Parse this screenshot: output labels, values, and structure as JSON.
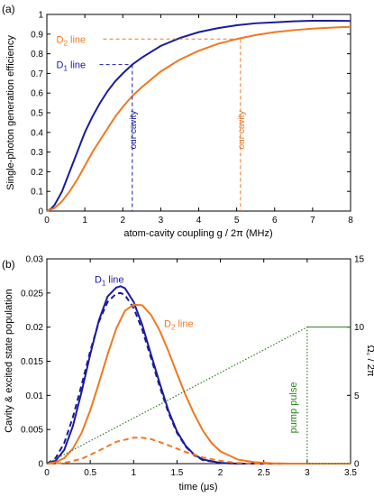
{
  "chart_data": [
    {
      "type": "line",
      "panel_label": "(a)",
      "xlabel": "atom-cavity coupling  g / 2π  (MHz)",
      "ylabel": "Single-photon generation efficiency",
      "xlim": [
        0,
        8
      ],
      "ylim": [
        0,
        1
      ],
      "x_ticks": [
        0,
        1,
        2,
        3,
        4,
        5,
        6,
        7,
        8
      ],
      "y_ticks": [
        0,
        0.1,
        0.2,
        0.3,
        0.4,
        0.5,
        0.6,
        0.7,
        0.8,
        0.9,
        1
      ],
      "y_tick_labels": [
        "0",
        "0.1",
        "0.2",
        "0.3",
        "0.4",
        "0.5",
        "0.6",
        "0.7",
        "0.8",
        "0.9",
        "1"
      ],
      "series": [
        {
          "name": "D1 line",
          "label_main": "D",
          "label_sub": "1",
          "label_rest": " line",
          "color": "#1a1a9e",
          "x": [
            0,
            0.1,
            0.2,
            0.4,
            0.6,
            0.8,
            1.0,
            1.2,
            1.4,
            1.6,
            1.8,
            2.0,
            2.25,
            2.5,
            3.0,
            3.5,
            4.0,
            4.5,
            5.0,
            5.5,
            6.0,
            6.5,
            7.0,
            7.5,
            8.0
          ],
          "y": [
            0,
            0.01,
            0.03,
            0.1,
            0.2,
            0.3,
            0.4,
            0.48,
            0.55,
            0.61,
            0.66,
            0.7,
            0.745,
            0.78,
            0.84,
            0.88,
            0.91,
            0.93,
            0.945,
            0.955,
            0.96,
            0.965,
            0.968,
            0.968,
            0.967
          ]
        },
        {
          "name": "D2 line",
          "label_main": "D",
          "label_sub": "2",
          "label_rest": " line",
          "color": "#f07820",
          "x": [
            0,
            0.2,
            0.4,
            0.6,
            0.8,
            1.0,
            1.2,
            1.4,
            1.6,
            1.8,
            2.0,
            2.25,
            2.5,
            3.0,
            3.5,
            4.0,
            4.5,
            5.0,
            5.5,
            6.0,
            6.5,
            7.0,
            7.5,
            8.0
          ],
          "y": [
            0,
            0.015,
            0.05,
            0.1,
            0.16,
            0.23,
            0.3,
            0.36,
            0.42,
            0.48,
            0.53,
            0.585,
            0.63,
            0.71,
            0.77,
            0.815,
            0.85,
            0.875,
            0.895,
            0.91,
            0.92,
            0.928,
            0.933,
            0.937
          ]
        }
      ],
      "markers": [
        {
          "series": 0,
          "x": 2.25,
          "y": 0.745,
          "annotation": "our cavity",
          "label_x0": 0.25
        },
        {
          "series": 1,
          "x": 5.1,
          "y": 0.875,
          "annotation": "our cavity",
          "label_x0": 0.25
        }
      ]
    },
    {
      "type": "line",
      "panel_label": "(b)",
      "xlabel": "time (μs)",
      "ylabel": "Cavity & excited state population",
      "y2label": "Ω꜀ / 2π",
      "xlim": [
        0,
        3.5
      ],
      "ylim": [
        0,
        0.03
      ],
      "y2lim": [
        0,
        15
      ],
      "x_ticks": [
        0,
        0.5,
        1,
        1.5,
        2,
        2.5,
        3,
        3.5
      ],
      "x_tick_labels": [
        "0",
        "0.5",
        "1",
        "1.5",
        "2",
        "2.5",
        "3",
        "3.5"
      ],
      "y_ticks": [
        0,
        0.005,
        0.01,
        0.015,
        0.02,
        0.025,
        0.03
      ],
      "y_tick_labels": [
        "0",
        "0.005",
        "0.01",
        "0.015",
        "0.02",
        "0.025",
        "0.03"
      ],
      "y2_ticks": [
        0,
        5,
        10,
        15
      ],
      "y2_tick_labels": [
        "0",
        "5",
        "10",
        "15"
      ],
      "annotations": [
        {
          "text_main": "D",
          "text_sub": "1",
          "text_rest": " line",
          "color": "#1a1a9e",
          "x": 0.55,
          "y": 0.0265
        },
        {
          "text_main": "D",
          "text_sub": "2",
          "text_rest": " line",
          "color": "#f07820",
          "x": 1.35,
          "y": 0.02
        },
        {
          "text": "pump pulse",
          "color": "#2e7d1e",
          "x": 2.9,
          "y": 0.0082
        }
      ],
      "series": [
        {
          "name": "D1 cavity",
          "color": "#1a1a9e",
          "style": "solid",
          "axis": "left",
          "x": [
            0,
            0.1,
            0.2,
            0.3,
            0.4,
            0.5,
            0.6,
            0.7,
            0.8,
            0.85,
            0.9,
            1.0,
            1.1,
            1.2,
            1.3,
            1.4,
            1.5,
            1.6,
            1.7,
            1.8,
            2.0,
            2.2,
            2.5,
            3.0,
            3.5
          ],
          "y": [
            0,
            0.0004,
            0.002,
            0.0055,
            0.0105,
            0.016,
            0.021,
            0.0245,
            0.0258,
            0.026,
            0.0257,
            0.0237,
            0.0203,
            0.016,
            0.0118,
            0.0078,
            0.0047,
            0.0026,
            0.0013,
            0.0006,
            0.0001,
            0,
            0,
            0,
            0
          ]
        },
        {
          "name": "D1 excited",
          "color": "#1a1a9e",
          "style": "dashed",
          "axis": "left",
          "x": [
            0,
            0.1,
            0.2,
            0.3,
            0.4,
            0.5,
            0.6,
            0.7,
            0.8,
            0.85,
            0.9,
            1.0,
            1.1,
            1.2,
            1.3,
            1.4,
            1.5,
            1.6,
            1.7,
            1.8,
            2.0,
            2.2,
            2.5,
            3.0,
            3.5
          ],
          "y": [
            0,
            0.0008,
            0.003,
            0.0068,
            0.0115,
            0.0165,
            0.0208,
            0.0237,
            0.0249,
            0.025,
            0.0247,
            0.0228,
            0.0196,
            0.0155,
            0.0113,
            0.0075,
            0.0045,
            0.0025,
            0.0012,
            0.0005,
            0.0001,
            0,
            0,
            0,
            0
          ]
        },
        {
          "name": "D2 cavity",
          "color": "#f07820",
          "style": "solid",
          "axis": "left",
          "x": [
            0,
            0.1,
            0.2,
            0.3,
            0.4,
            0.5,
            0.6,
            0.7,
            0.8,
            0.9,
            1.0,
            1.1,
            1.2,
            1.3,
            1.4,
            1.5,
            1.6,
            1.7,
            1.8,
            1.9,
            2.0,
            2.2,
            2.4,
            2.6,
            2.8,
            3.0,
            3.5
          ],
          "y": [
            0,
            0.0002,
            0.0008,
            0.0022,
            0.0045,
            0.0078,
            0.0118,
            0.016,
            0.0198,
            0.0224,
            0.0233,
            0.0232,
            0.0218,
            0.0195,
            0.0165,
            0.0132,
            0.01,
            0.0072,
            0.0048,
            0.003,
            0.0018,
            0.0006,
            0.0002,
            5e-05,
            0,
            0,
            0
          ]
        },
        {
          "name": "D2 excited",
          "color": "#f07820",
          "style": "dashed",
          "axis": "left",
          "x": [
            0,
            0.2,
            0.4,
            0.6,
            0.8,
            1.0,
            1.1,
            1.2,
            1.4,
            1.6,
            1.8,
            2.0,
            2.2,
            2.4,
            2.6,
            3.0,
            3.5
          ],
          "y": [
            0,
            0.0001,
            0.0007,
            0.0019,
            0.0032,
            0.0038,
            0.0038,
            0.0036,
            0.0027,
            0.0017,
            0.0009,
            0.0004,
            0.0001,
            0,
            0,
            0,
            0
          ]
        },
        {
          "name": "pump pulse",
          "color": "#2e7d1e",
          "style": "dotted",
          "axis": "right",
          "x": [
            0,
            3.0,
            3.0,
            3.5
          ],
          "y": [
            0,
            10,
            0,
            0
          ]
        },
        {
          "name": "pump pulse plateau",
          "color": "#2e7d1e",
          "style": "solid-thin",
          "axis": "right",
          "x": [
            3.0,
            3.5
          ],
          "y": [
            10,
            10
          ]
        }
      ]
    }
  ]
}
